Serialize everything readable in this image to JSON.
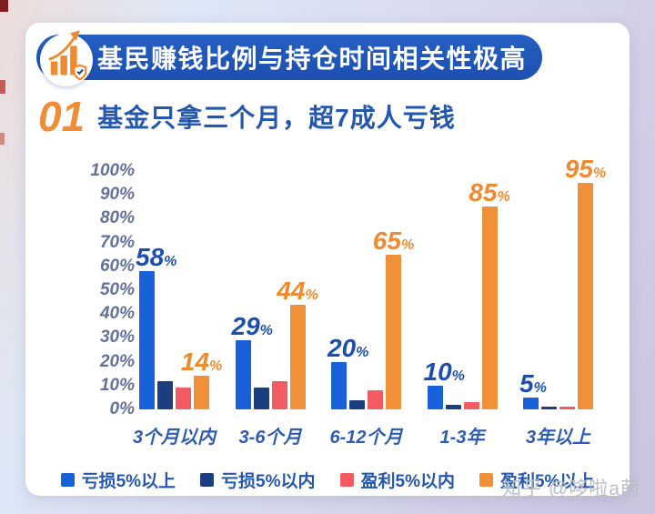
{
  "header": {
    "banner_title": "基民赚钱比例与持仓时间相关性极高"
  },
  "section": {
    "number": "01",
    "title": "基金只拿三个月，超7成人亏钱"
  },
  "chart_data": {
    "type": "bar",
    "title": "基金只拿三个月，超7成人亏钱",
    "categories": [
      "3个月以内",
      "3-6个月",
      "6-12个月",
      "1-3年",
      "3年以上"
    ],
    "series": [
      {
        "name": "亏损5%以上",
        "color": "#1961d9",
        "values": [
          58,
          29,
          20,
          10,
          5
        ],
        "show_labels": true,
        "label_color": "#1c4fae",
        "label_anchor": "left-anchor"
      },
      {
        "name": "亏损5%以内",
        "color": "#1b3e7e",
        "values": [
          12,
          9,
          4,
          2,
          1
        ],
        "show_labels": false
      },
      {
        "name": "盈利5%以内",
        "color": "#f35b62",
        "values": [
          9,
          12,
          8,
          3,
          1
        ],
        "show_labels": false
      },
      {
        "name": "盈利5%以上",
        "color": "#f0913a",
        "values": [
          14,
          44,
          65,
          85,
          95
        ],
        "show_labels": true,
        "label_color": "#ef8a2e",
        "label_anchor": "center-anchor"
      }
    ],
    "ylim": [
      0,
      100
    ],
    "yticks": [
      "100%",
      "90%",
      "80%",
      "70%",
      "60%",
      "50%",
      "40%",
      "30%",
      "20%",
      "10%",
      "0%"
    ],
    "grid": false,
    "legend": [
      "亏损5%以上",
      "亏损5%以内",
      "盈利5%以内",
      "盈利5%以上"
    ],
    "legend_position": "bottom"
  },
  "watermark": "知乎 @哆啦a萌"
}
